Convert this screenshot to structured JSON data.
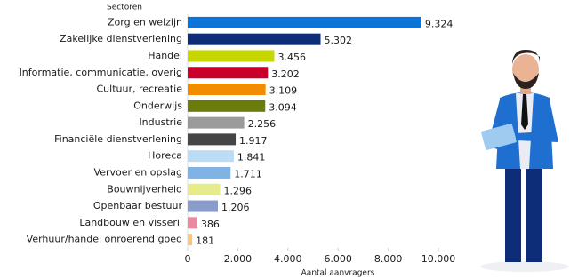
{
  "chart_data": {
    "type": "bar",
    "orientation": "horizontal",
    "y_label": "Sectoren",
    "x_label": "Aantal aanvragers",
    "categories": [
      "Zorg en welzijn",
      "Zakelijke dienstverlening",
      "Handel",
      "Informatie, communicatie, overig",
      "Cultuur, recreatie",
      "Onderwijs",
      "Industrie",
      "Financiële dienstverlening",
      "Horeca",
      "Vervoer en opslag",
      "Bouwnijverheid",
      "Openbaar bestuur",
      "Landbouw en visserij",
      "Verhuur/handel onroerend goed"
    ],
    "values": [
      9324,
      5302,
      3456,
      3202,
      3109,
      3094,
      2256,
      1917,
      1841,
      1711,
      1296,
      1206,
      386,
      181
    ],
    "value_labels": [
      "9.324",
      "5.302",
      "3.456",
      "3.202",
      "3.109",
      "3.094",
      "2.256",
      "1.917",
      "1.841",
      "1.711",
      "1.296",
      "1.206",
      "386",
      "181"
    ],
    "colors": [
      "#0b74d9",
      "#0d2d78",
      "#c5d600",
      "#c8002c",
      "#f28c00",
      "#6b7b0c",
      "#9b9b9b",
      "#454545",
      "#bcdcf6",
      "#80b3e3",
      "#e6eb8c",
      "#8b9ccc",
      "#e98aa1",
      "#f6c77c"
    ],
    "xlim": [
      0,
      10000
    ],
    "xticks": [
      0,
      {
        "value": 2000,
        "label": "2.000"
      },
      {
        "value": 4000,
        "label": "4.000"
      },
      {
        "value": 6000,
        "label": "6.000"
      },
      {
        "value": 8000,
        "label": "8.000"
      },
      {
        "value": 10000,
        "label": "10.000"
      }
    ]
  }
}
